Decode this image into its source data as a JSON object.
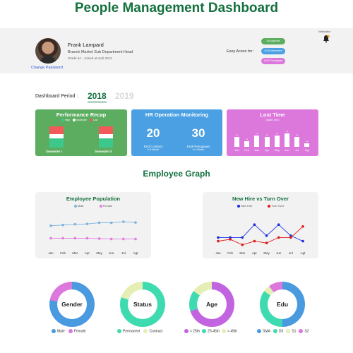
{
  "header": {
    "title": "People Management Dashboard"
  },
  "profile": {
    "name": "Frank Lampard",
    "role": "Branch Market Sub Department Head",
    "meta": "Grade 5A - Joined at April 2013",
    "change_password": "Change Password"
  },
  "easy_access": {
    "label": "Easy Acess for :",
    "buttons": [
      {
        "label": "All Approval",
        "color": "#5cad5f"
      },
      {
        "label": "OCR Movement",
        "color": "#4aa0e2"
      },
      {
        "label": "OCR Penugasan",
        "color": "#dc77dc"
      }
    ]
  },
  "notification": {
    "label": "Notification"
  },
  "period": {
    "label": "Dashboard Period :",
    "active_year": "2018",
    "other_year": "2019"
  },
  "cards": {
    "performance": {
      "title": "Performance Recap",
      "legend": [
        "High",
        "Moderate",
        "Low"
      ],
      "legend_colors": [
        "#3cc88a",
        "#ffffff",
        "#f25a5a"
      ],
      "semesters": [
        {
          "label": "Semester I",
          "high": 0.45,
          "moderate": 0.2,
          "low": 0.35
        },
        {
          "label": "Semester II",
          "high": 0.45,
          "moderate": 0.2,
          "low": 0.35
        }
      ]
    },
    "hr_ops": {
      "title": "HR Operation Monitoring",
      "items": [
        {
          "value": "20",
          "label": "End Contract",
          "sub": "in 3 Month"
        },
        {
          "value": "30",
          "label": "End Penugasan",
          "sub": "in 3 Month"
        }
      ]
    },
    "lost_time": {
      "title": "Lost Time",
      "subtitle": "(sakit, Izin)",
      "months": [
        "Jan",
        "Feb",
        "Mar",
        "Apr",
        "May",
        "Jun",
        "Jul",
        "Agt"
      ],
      "values": [
        25,
        15,
        30,
        25,
        30,
        35,
        25,
        10
      ],
      "labels": [
        "xx",
        "xx",
        "xx",
        "xx",
        "xx",
        "xx",
        "xx",
        "xx"
      ]
    }
  },
  "section_title": "Employee Graph",
  "charts": {
    "population": {
      "title": "Employee Population",
      "legend": [
        {
          "name": "Male",
          "color": "#7fb3e0"
        },
        {
          "name": "Female",
          "color": "#e07fe0"
        }
      ],
      "months": [
        "Jan",
        "Feb",
        "Mar",
        "Apr",
        "May",
        "Jun",
        "Jul",
        "Agt"
      ]
    },
    "turnover": {
      "title": "New Hire vs Turn Over",
      "legend": [
        {
          "name": "New Hire",
          "color": "#1a2fe0"
        },
        {
          "name": "Turn Over",
          "color": "#e01a1a"
        }
      ],
      "months": [
        "Jan",
        "Feb",
        "Mar",
        "Apr",
        "May",
        "Jun",
        "Jul",
        "Agt"
      ]
    }
  },
  "chart_data": [
    {
      "type": "line",
      "title": "Employee Population",
      "categories": [
        "Jan",
        "Feb",
        "Mar",
        "Apr",
        "May",
        "Jun",
        "Jul",
        "Agt"
      ],
      "series": [
        {
          "name": "Male",
          "values": [
            6.2,
            6.4,
            6.6,
            6.7,
            7.0,
            7.0,
            7.3,
            7.1
          ]
        },
        {
          "name": "Female",
          "values": [
            2.8,
            2.8,
            2.8,
            2.8,
            2.7,
            2.6,
            2.6,
            2.6
          ]
        }
      ],
      "ylim": [
        0,
        10
      ]
    },
    {
      "type": "line",
      "title": "New Hire vs Turn Over",
      "categories": [
        "Jan",
        "Feb",
        "Mar",
        "Apr",
        "May",
        "Jun",
        "Jul",
        "Agt"
      ],
      "series": [
        {
          "name": "New Hire",
          "values": [
            3.0,
            3.0,
            3.0,
            6.5,
            3.5,
            6.5,
            3.5,
            2.0
          ]
        },
        {
          "name": "Turn Over",
          "values": [
            2.0,
            2.5,
            1.0,
            2.0,
            1.5,
            3.0,
            3.0,
            6.0
          ]
        }
      ],
      "ylim": [
        0,
        10
      ]
    }
  ],
  "donuts": [
    {
      "title": "Gender",
      "slices": [
        {
          "name": "Male",
          "value": 78,
          "color": "#4a9ae0"
        },
        {
          "name": "Female",
          "value": 22,
          "color": "#dc77dc"
        }
      ]
    },
    {
      "title": "Status",
      "slices": [
        {
          "name": "Permanent",
          "value": 80,
          "color": "#3fdbb0"
        },
        {
          "name": "Contract",
          "value": 20,
          "color": "#e5eeb4"
        }
      ]
    },
    {
      "title": "Age",
      "slices": [
        {
          "name": "< 25th",
          "value": 70,
          "color": "#c264e0"
        },
        {
          "name": "25-45th",
          "value": 15,
          "color": "#3fdbb0"
        },
        {
          "name": "> 45th",
          "value": 15,
          "color": "#e5eeb4"
        }
      ]
    },
    {
      "title": "Edu",
      "slices": [
        {
          "name": "SMA",
          "value": 50,
          "color": "#4a9ae0"
        },
        {
          "name": "D3",
          "value": 35,
          "color": "#3fdbb0"
        },
        {
          "name": "S1",
          "value": 5,
          "color": "#e5eeb4"
        },
        {
          "name": "S2",
          "value": 10,
          "color": "#dc77dc"
        }
      ]
    }
  ]
}
